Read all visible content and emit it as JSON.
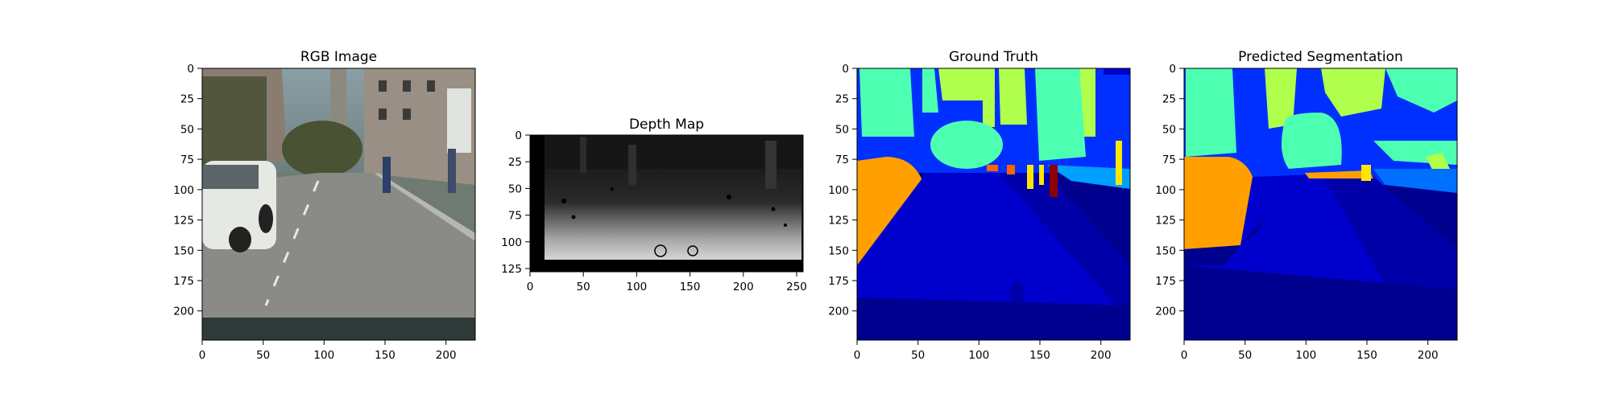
{
  "chart_data": [
    {
      "type": "image",
      "title": "RGB Image",
      "xlim": [
        0,
        224
      ],
      "ylim": [
        224,
        0
      ],
      "xticks": [
        0,
        50,
        100,
        150,
        200
      ],
      "yticks": [
        0,
        25,
        50,
        75,
        100,
        125,
        150,
        175,
        200
      ],
      "colors": {
        "sky": "#7a8a8c",
        "road": "#8a8a86",
        "building": "#8c7f72",
        "vegetation": "#3e4a2c",
        "car": "#e6e8e4",
        "dashboard": "#2e3a38"
      }
    },
    {
      "type": "image",
      "title": "Depth Map",
      "xlim": [
        0,
        256
      ],
      "ylim": [
        128,
        0
      ],
      "xticks": [
        0,
        50,
        100,
        150,
        200,
        250
      ],
      "yticks": [
        0,
        25,
        50,
        75,
        100,
        125
      ],
      "colors": {
        "far": "#1a1a1a",
        "near": "#dcdcdc",
        "missing": "#000000"
      }
    },
    {
      "type": "heatmap",
      "title": "Ground Truth",
      "xlim": [
        0,
        224
      ],
      "ylim": [
        224,
        0
      ],
      "xticks": [
        0,
        50,
        100,
        150,
        200
      ],
      "yticks": [
        0,
        25,
        50,
        75,
        100,
        125,
        150,
        175,
        200
      ],
      "colors": {
        "road": "#00008f",
        "sidewalk": "#0000cc",
        "building": "#0030ff",
        "vegetation": "#4dffb0",
        "sky": "#b0ff4d",
        "car": "#ffa000",
        "pole": "#ffe600",
        "person": "#8f0000",
        "other": "#00a0ff",
        "orange": "#ff6400"
      }
    },
    {
      "type": "heatmap",
      "title": "Predicted Segmentation",
      "xlim": [
        0,
        224
      ],
      "ylim": [
        224,
        0
      ],
      "xticks": [
        0,
        50,
        100,
        150,
        200
      ],
      "yticks": [
        0,
        25,
        50,
        75,
        100,
        125,
        150,
        175,
        200
      ],
      "colors": {
        "road": "#00008f",
        "sidewalk": "#0000cc",
        "building": "#0030ff",
        "vegetation": "#4dffb0",
        "sky": "#b0ff4d",
        "car": "#ffa000",
        "pole": "#ffe600",
        "other": "#0070ff"
      }
    }
  ]
}
